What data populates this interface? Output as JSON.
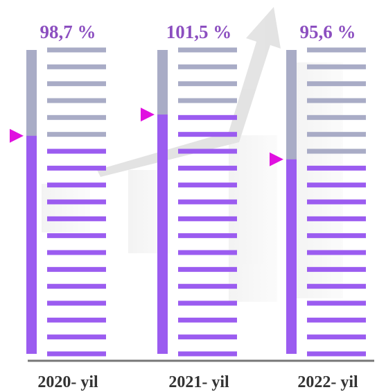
{
  "chart_data": {
    "type": "gauge",
    "categories": [
      "2020- yil",
      "2021- yil",
      "2022- yil"
    ],
    "values": [
      98.7,
      101.5,
      95.6
    ],
    "value_labels": [
      "98,7 %",
      "101,5 %",
      "95,6 %"
    ],
    "color": "#9b5cf0",
    "ylim": [
      70,
      110
    ]
  }
}
